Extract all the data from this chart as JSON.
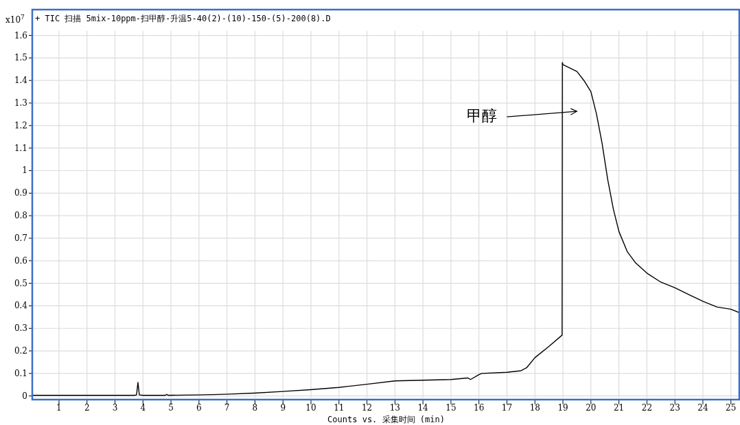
{
  "chart_data": {
    "type": "line",
    "title": "+ TIC 扫描 5mix-10ppm-扫甲醇-升温5-40(2)-(10)-150-(5)-200(8).D",
    "xlabel": "Counts vs. 采集时间 (min)",
    "ylabel": "x10$^{7}$",
    "annotations": [
      "甲醇"
    ],
    "series": [
      {
        "color": "#000000",
        "x": [
          0.07,
          3.7,
          3.77,
          3.82,
          3.87,
          4.0,
          4.8,
          4.85,
          4.9,
          6,
          7,
          8,
          9,
          10,
          11,
          12,
          13,
          14,
          15,
          15.6,
          15.7,
          16.0,
          16.1,
          17,
          17.5,
          17.7,
          18,
          18.5,
          18.97,
          18.98,
          19.0,
          19.5,
          19.75,
          20.0,
          20.2,
          20.4,
          20.6,
          20.8,
          21.0,
          21.3,
          21.6,
          22,
          22.5,
          23,
          23.5,
          24,
          24.5,
          25,
          25.3
        ],
        "values": [
          0.003,
          0.003,
          0.005,
          0.06,
          0.005,
          0.003,
          0.003,
          0.007,
          0.003,
          0.005,
          0.008,
          0.013,
          0.02,
          0.028,
          0.038,
          0.052,
          0.067,
          0.07,
          0.073,
          0.08,
          0.073,
          0.095,
          0.1,
          0.105,
          0.112,
          0.125,
          0.17,
          0.22,
          0.27,
          1.48,
          1.47,
          1.44,
          1.4,
          1.35,
          1.25,
          1.12,
          0.96,
          0.83,
          0.73,
          0.64,
          0.59,
          0.545,
          0.505,
          0.48,
          0.45,
          0.42,
          0.395,
          0.385,
          0.37
        ]
      }
    ],
    "xlim": [
      0.07,
      25.3
    ],
    "ylim": [
      -0.01,
      1.62
    ],
    "xticks": [
      1,
      2,
      3,
      4,
      5,
      6,
      7,
      8,
      9,
      10,
      11,
      12,
      13,
      14,
      15,
      16,
      17,
      18,
      19,
      20,
      21,
      22,
      23,
      24,
      25
    ],
    "yticks": [
      0,
      0.1,
      0.2,
      0.3,
      0.4,
      0.5,
      0.6,
      0.7,
      0.8,
      0.9,
      1,
      1.1,
      1.2,
      1.3,
      1.4,
      1.5,
      1.6
    ],
    "grid": true,
    "line_style": "solid"
  }
}
